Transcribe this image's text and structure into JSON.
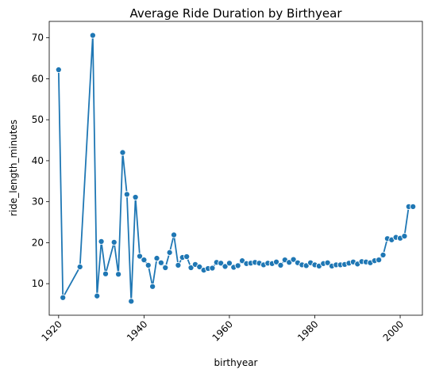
{
  "chart_data": {
    "type": "line",
    "title": "Average Ride Duration by Birthyear",
    "xlabel": "birthyear",
    "ylabel": "ride_length_minutes",
    "xlim": [
      1917.8,
      2005.2
    ],
    "ylim": [
      2.3,
      74.0
    ],
    "x_ticks": [
      1920,
      1940,
      1960,
      1980,
      2000
    ],
    "y_ticks": [
      10,
      20,
      30,
      40,
      50,
      60,
      70
    ],
    "grid": false,
    "marker": "circle",
    "line_color": "#1f77b4",
    "series": [
      {
        "x": [
          1920,
          1921,
          1925,
          1928,
          1929,
          1930,
          1931,
          1933,
          1934,
          1935,
          1936,
          1937,
          1938,
          1939,
          1940,
          1941,
          1942,
          1943,
          1944,
          1945,
          1946,
          1947,
          1948,
          1949,
          1950,
          1951,
          1952,
          1953,
          1954,
          1955,
          1956,
          1957,
          1958,
          1959,
          1960,
          1961,
          1962,
          1963,
          1964,
          1965,
          1966,
          1967,
          1968,
          1969,
          1970,
          1971,
          1972,
          1973,
          1974,
          1975,
          1976,
          1977,
          1978,
          1979,
          1980,
          1981,
          1982,
          1983,
          1984,
          1985,
          1986,
          1987,
          1988,
          1989,
          1990,
          1991,
          1992,
          1993,
          1994,
          1995,
          1996,
          1997,
          1998,
          1999,
          2000,
          2001,
          2002,
          2003
        ],
        "y": [
          62.2,
          6.6,
          14.1,
          70.6,
          7.0,
          20.3,
          12.4,
          20.1,
          12.3,
          42.0,
          31.8,
          5.7,
          31.1,
          16.7,
          15.8,
          14.5,
          9.3,
          16.2,
          15.1,
          13.9,
          17.6,
          21.9,
          14.5,
          16.4,
          16.6,
          13.9,
          14.7,
          14.1,
          13.3,
          13.7,
          13.8,
          15.2,
          15.0,
          14.2,
          15.0,
          14.0,
          14.4,
          15.6,
          14.9,
          15.0,
          15.2,
          15.0,
          14.6,
          15.0,
          14.9,
          15.3,
          14.5,
          15.8,
          15.2,
          15.9,
          15.1,
          14.6,
          14.4,
          15.1,
          14.6,
          14.3,
          14.9,
          15.1,
          14.3,
          14.6,
          14.6,
          14.7,
          15.0,
          15.3,
          14.8,
          15.4,
          15.3,
          15.1,
          15.6,
          15.8,
          17.0,
          21.0,
          20.7,
          21.3,
          21.1,
          21.6,
          28.8,
          28.8
        ]
      }
    ]
  }
}
